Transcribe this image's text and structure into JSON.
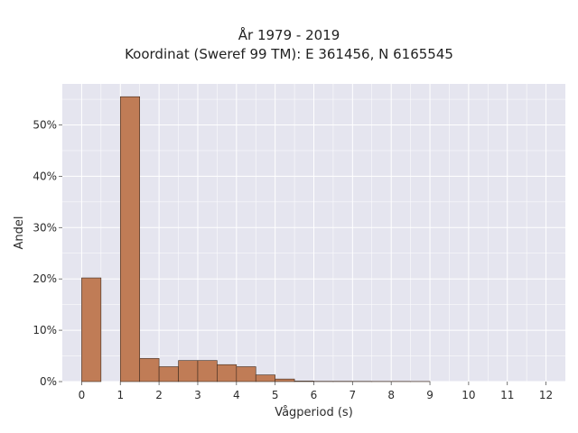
{
  "chart_data": {
    "type": "bar",
    "title": "År 1979 - 2019",
    "subtitle": "Koordinat (Sweref 99 TM): E 361456, N 6165545",
    "xlabel": "Vågperiod (s)",
    "ylabel": "Andel",
    "xlim": [
      -0.5,
      12.5
    ],
    "ylim": [
      0,
      0.58
    ],
    "x_ticks": [
      "0",
      "1",
      "2",
      "3",
      "4",
      "5",
      "6",
      "7",
      "8",
      "9",
      "10",
      "11",
      "12"
    ],
    "y_ticks": [
      "0%",
      "10%",
      "20%",
      "30%",
      "40%",
      "50%"
    ],
    "grid": true,
    "bar_color": "#c07c56",
    "bar_edge_color": "#3d2a1e",
    "bin_width": 0.5,
    "bins": [
      {
        "x0": 0.0,
        "value": 0.202
      },
      {
        "x0": 0.5,
        "value": 0.0
      },
      {
        "x0": 1.0,
        "value": 0.555
      },
      {
        "x0": 1.5,
        "value": 0.045
      },
      {
        "x0": 2.0,
        "value": 0.029
      },
      {
        "x0": 2.5,
        "value": 0.041
      },
      {
        "x0": 3.0,
        "value": 0.041
      },
      {
        "x0": 3.5,
        "value": 0.033
      },
      {
        "x0": 4.0,
        "value": 0.029
      },
      {
        "x0": 4.5,
        "value": 0.013
      },
      {
        "x0": 5.0,
        "value": 0.005
      },
      {
        "x0": 5.5,
        "value": 0.001
      },
      {
        "x0": 6.0,
        "value": 0.0005
      },
      {
        "x0": 6.5,
        "value": 0.0005
      },
      {
        "x0": 7.0,
        "value": 0.0004
      },
      {
        "x0": 7.5,
        "value": 0.0003
      },
      {
        "x0": 8.0,
        "value": 0.0003
      },
      {
        "x0": 8.5,
        "value": 0.0002
      }
    ]
  }
}
